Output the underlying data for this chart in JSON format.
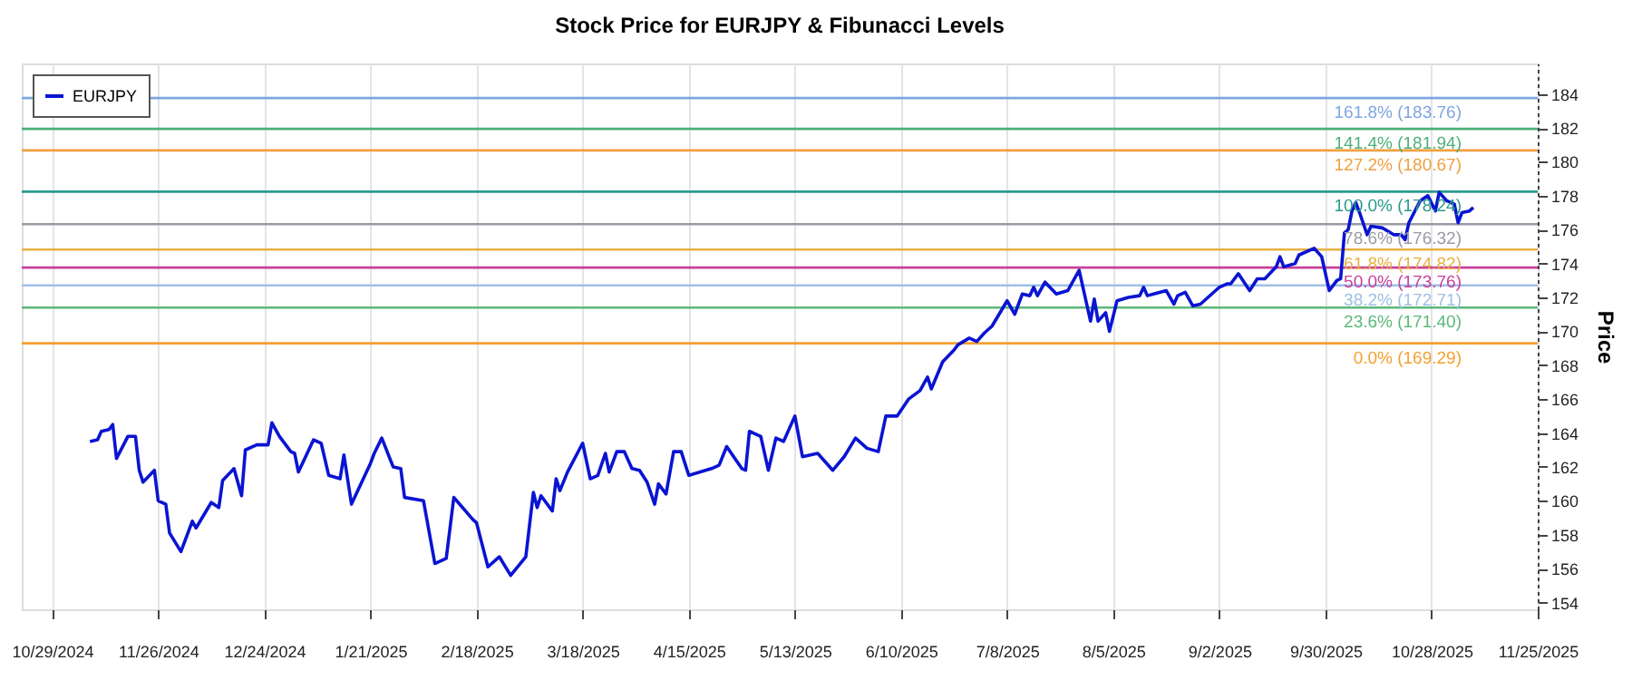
{
  "chart_data": {
    "type": "line",
    "title": "Stock Price for EURJPY & Fibunacci Levels",
    "ylabel": "Price",
    "x": [
      "2024-11-08",
      "2024-11-10",
      "2024-11-11",
      "2024-11-13",
      "2024-11-14",
      "2024-11-15",
      "2024-11-18",
      "2024-11-20",
      "2024-11-21",
      "2024-11-22",
      "2024-11-25",
      "2024-11-26",
      "2024-11-28",
      "2024-11-29",
      "2024-12-02",
      "2024-12-05",
      "2024-12-06",
      "2024-12-10",
      "2024-12-12",
      "2024-12-13",
      "2024-12-16",
      "2024-12-18",
      "2024-12-19",
      "2024-12-22",
      "2024-12-25",
      "2024-12-26",
      "2024-12-28",
      "2024-12-31",
      "2025-01-01",
      "2025-01-02",
      "2025-01-06",
      "2025-01-08",
      "2025-01-10",
      "2025-01-13",
      "2025-01-14",
      "2025-01-16",
      "2025-01-21",
      "2025-01-22",
      "2025-01-24",
      "2025-01-27",
      "2025-01-29",
      "2025-01-30",
      "2025-02-04",
      "2025-02-07",
      "2025-02-10",
      "2025-02-12",
      "2025-02-17",
      "2025-02-18",
      "2025-02-21",
      "2025-02-24",
      "2025-02-27",
      "2025-03-03",
      "2025-03-05",
      "2025-03-06",
      "2025-03-07",
      "2025-03-10",
      "2025-03-11",
      "2025-03-12",
      "2025-03-14",
      "2025-03-18",
      "2025-03-20",
      "2025-03-22",
      "2025-03-24",
      "2025-03-25",
      "2025-03-27",
      "2025-03-29",
      "2025-03-31",
      "2025-04-02",
      "2025-04-04",
      "2025-04-06",
      "2025-04-07",
      "2025-04-09",
      "2025-04-11",
      "2025-04-13",
      "2025-04-15",
      "2025-04-21",
      "2025-04-23",
      "2025-04-25",
      "2025-04-29",
      "2025-04-30",
      "2025-05-01",
      "2025-05-04",
      "2025-05-06",
      "2025-05-08",
      "2025-05-10",
      "2025-05-13",
      "2025-05-15",
      "2025-05-19",
      "2025-05-23",
      "2025-05-26",
      "2025-05-29",
      "2025-06-01",
      "2025-06-04",
      "2025-06-06",
      "2025-06-09",
      "2025-06-12",
      "2025-06-15",
      "2025-06-17",
      "2025-06-18",
      "2025-06-21",
      "2025-06-24",
      "2025-06-25",
      "2025-06-28",
      "2025-06-30",
      "2025-07-02",
      "2025-07-04",
      "2025-07-08",
      "2025-07-10",
      "2025-07-12",
      "2025-07-14",
      "2025-07-15",
      "2025-07-16",
      "2025-07-18",
      "2025-07-21",
      "2025-07-24",
      "2025-07-27",
      "2025-07-30",
      "2025-07-31",
      "2025-08-01",
      "2025-08-03",
      "2025-08-04",
      "2025-08-06",
      "2025-08-09",
      "2025-08-12",
      "2025-08-13",
      "2025-08-14",
      "2025-08-19",
      "2025-08-21",
      "2025-08-22",
      "2025-08-24",
      "2025-08-26",
      "2025-08-28",
      "2025-09-02",
      "2025-09-04",
      "2025-09-05",
      "2025-09-07",
      "2025-09-10",
      "2025-09-12",
      "2025-09-14",
      "2025-09-17",
      "2025-09-18",
      "2025-09-19",
      "2025-09-22",
      "2025-09-23",
      "2025-09-27",
      "2025-09-29",
      "2025-10-01",
      "2025-10-03",
      "2025-10-04",
      "2025-10-05",
      "2025-10-06",
      "2025-10-07",
      "2025-10-08",
      "2025-10-09",
      "2025-10-11",
      "2025-10-12",
      "2025-10-15",
      "2025-10-18",
      "2025-10-20",
      "2025-10-21",
      "2025-10-22",
      "2025-10-25",
      "2025-10-27",
      "2025-10-29",
      "2025-10-30",
      "2025-11-01",
      "2025-11-03",
      "2025-11-04",
      "2025-11-05",
      "2025-11-07",
      "2025-11-08"
    ],
    "series": [
      {
        "name": "EURJPY",
        "color": "#0a14d2",
        "values": [
          163.5,
          163.6,
          164.1,
          164.2,
          164.5,
          162.5,
          163.8,
          163.8,
          161.8,
          161.1,
          161.8,
          160.0,
          159.8,
          158.1,
          157.0,
          158.8,
          158.4,
          159.9,
          159.6,
          161.2,
          161.9,
          160.3,
          163.0,
          163.3,
          163.3,
          164.6,
          163.8,
          162.9,
          162.8,
          161.7,
          163.6,
          163.4,
          161.5,
          161.3,
          162.7,
          159.8,
          162.2,
          162.8,
          163.7,
          162.0,
          161.9,
          160.2,
          160.0,
          156.3,
          156.6,
          160.2,
          158.9,
          158.7,
          156.1,
          156.7,
          155.6,
          156.7,
          160.5,
          159.6,
          160.3,
          159.4,
          161.3,
          160.6,
          161.7,
          163.4,
          161.3,
          161.5,
          162.8,
          161.7,
          162.9,
          162.9,
          161.9,
          161.8,
          161.1,
          159.8,
          161.0,
          160.4,
          162.9,
          162.9,
          161.5,
          161.9,
          162.1,
          163.2,
          161.9,
          161.8,
          164.1,
          163.8,
          161.8,
          163.7,
          163.5,
          165.0,
          162.6,
          162.8,
          161.8,
          162.6,
          163.7,
          163.1,
          162.9,
          165.0,
          165.0,
          166.0,
          166.5,
          167.3,
          166.6,
          168.2,
          168.9,
          169.2,
          169.6,
          169.4,
          169.9,
          170.3,
          171.8,
          171.0,
          172.2,
          172.1,
          172.6,
          172.1,
          172.9,
          172.2,
          172.4,
          173.6,
          170.6,
          171.9,
          170.6,
          171.1,
          170.0,
          171.8,
          172.0,
          172.1,
          172.6,
          172.1,
          172.4,
          171.6,
          172.1,
          172.3,
          171.5,
          171.6,
          172.6,
          172.8,
          172.8,
          173.4,
          172.4,
          173.1,
          173.1,
          173.8,
          174.4,
          173.8,
          174.0,
          174.5,
          174.9,
          174.4,
          172.4,
          173.0,
          173.1,
          175.8,
          176.0,
          177.1,
          177.6,
          177.0,
          175.7,
          176.2,
          176.1,
          175.7,
          175.7,
          175.4,
          176.4,
          177.7,
          178.0,
          177.1,
          178.2,
          177.7,
          177.5,
          176.4,
          177.0,
          177.1,
          177.3
        ]
      }
    ],
    "xlim": [
      "2024-10-21",
      "2025-11-25"
    ],
    "xticks": [
      {
        "value": "2024-10-29",
        "label": "10/29/2024"
      },
      {
        "value": "2024-11-26",
        "label": "11/26/2024"
      },
      {
        "value": "2024-12-24",
        "label": "12/24/2024"
      },
      {
        "value": "2025-01-21",
        "label": "1/21/2025"
      },
      {
        "value": "2025-02-18",
        "label": "2/18/2025"
      },
      {
        "value": "2025-03-18",
        "label": "3/18/2025"
      },
      {
        "value": "2025-04-15",
        "label": "4/15/2025"
      },
      {
        "value": "2025-05-13",
        "label": "5/13/2025"
      },
      {
        "value": "2025-06-10",
        "label": "6/10/2025"
      },
      {
        "value": "2025-07-08",
        "label": "7/8/2025"
      },
      {
        "value": "2025-08-05",
        "label": "8/5/2025"
      },
      {
        "value": "2025-09-02",
        "label": "9/2/2025"
      },
      {
        "value": "2025-09-30",
        "label": "9/30/2025"
      },
      {
        "value": "2025-10-28",
        "label": "10/28/2025"
      },
      {
        "value": "2025-11-25",
        "label": "11/25/2025"
      }
    ],
    "ylim": [
      153.6,
      185.8
    ],
    "yticks": [
      154,
      156,
      158,
      160,
      162,
      164,
      166,
      168,
      170,
      172,
      174,
      176,
      178,
      180,
      182,
      184
    ],
    "ref_lines": [
      {
        "axis": "y",
        "value": 183.76,
        "label": "161.8% (183.76)",
        "color": "#7ea6e0"
      },
      {
        "axis": "y",
        "value": 181.94,
        "label": "141.4% (181.94)",
        "color": "#4cb07a"
      },
      {
        "axis": "y",
        "value": 180.67,
        "label": "127.2% (180.67)",
        "color": "#f0a040"
      },
      {
        "axis": "y",
        "value": 178.24,
        "label": "100.0% (178.24)",
        "color": "#2a9a8c"
      },
      {
        "axis": "y",
        "value": 176.32,
        "label": "78.6% (176.32)",
        "color": "#9a9aa4"
      },
      {
        "axis": "y",
        "value": 174.82,
        "label": "61.8% (174.82)",
        "color": "#e8b040"
      },
      {
        "axis": "y",
        "value": 173.76,
        "label": "50.0% (173.76)",
        "color": "#c8409c"
      },
      {
        "axis": "y",
        "value": 172.71,
        "label": "38.2% (172.71)",
        "color": "#9ec0e4"
      },
      {
        "axis": "y",
        "value": 171.4,
        "label": "23.6% (171.40)",
        "color": "#5cb87a"
      },
      {
        "axis": "y",
        "value": 169.29,
        "label": "0.0% (169.29)",
        "color": "#f5a030"
      }
    ],
    "grid": "x",
    "legend": "top left",
    "line_style": "solid",
    "marker": "none"
  }
}
